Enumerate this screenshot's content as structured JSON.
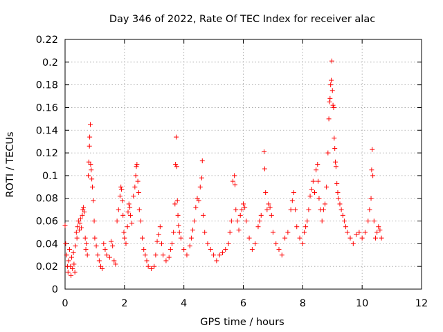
{
  "chart_data": {
    "type": "scatter",
    "title": "Day 346 of 2022, Rate Of TEC Index for receiver alac",
    "xlabel": "GPS time / hours",
    "ylabel": "ROTI / TECUs",
    "xlim": [
      0,
      12
    ],
    "ylim": [
      0,
      0.22
    ],
    "x_ticks": [
      "0",
      "2",
      "4",
      "6",
      "8",
      "10",
      "12"
    ],
    "x_tick_values": [
      0,
      2,
      4,
      6,
      8,
      10,
      12
    ],
    "y_ticks": [
      "0",
      "0.02",
      "0.04",
      "0.06",
      "0.08",
      "0.1",
      "0.12",
      "0.14",
      "0.16",
      "0.18",
      "0.2",
      "0.22"
    ],
    "y_tick_values": [
      0,
      0.02,
      0.04,
      0.06,
      0.08,
      0.1,
      0.12,
      0.14,
      0.16,
      0.18,
      0.2,
      0.22
    ],
    "grid": true,
    "marker": "+",
    "color": "#ff0000",
    "series": [
      {
        "name": "",
        "points": [
          [
            0.0,
            0.056
          ],
          [
            0.02,
            0.04
          ],
          [
            0.05,
            0.03
          ],
          [
            0.08,
            0.02
          ],
          [
            0.1,
            0.015
          ],
          [
            0.12,
            0.025
          ],
          [
            0.15,
            0.035
          ],
          [
            0.18,
            0.02
          ],
          [
            0.2,
            0.012
          ],
          [
            0.22,
            0.028
          ],
          [
            0.25,
            0.018
          ],
          [
            0.28,
            0.032
          ],
          [
            0.3,
            0.022
          ],
          [
            0.33,
            0.015
          ],
          [
            0.35,
            0.038
          ],
          [
            0.38,
            0.05
          ],
          [
            0.4,
            0.045
          ],
          [
            0.42,
            0.055
          ],
          [
            0.45,
            0.06
          ],
          [
            0.48,
            0.052
          ],
          [
            0.5,
            0.058
          ],
          [
            0.52,
            0.062
          ],
          [
            0.55,
            0.054
          ],
          [
            0.58,
            0.065
          ],
          [
            0.6,
            0.07
          ],
          [
            0.62,
            0.072
          ],
          [
            0.65,
            0.068
          ],
          [
            0.68,
            0.045
          ],
          [
            0.7,
            0.035
          ],
          [
            0.72,
            0.04
          ],
          [
            0.75,
            0.03
          ],
          [
            0.78,
            0.1
          ],
          [
            0.8,
            0.112
          ],
          [
            0.82,
            0.126
          ],
          [
            0.83,
            0.134
          ],
          [
            0.85,
            0.145
          ],
          [
            0.86,
            0.11
          ],
          [
            0.88,
            0.105
          ],
          [
            0.9,
            0.097
          ],
          [
            0.92,
            0.09
          ],
          [
            0.95,
            0.078
          ],
          [
            0.98,
            0.06
          ],
          [
            1.0,
            0.045
          ],
          [
            1.05,
            0.038
          ],
          [
            1.1,
            0.03
          ],
          [
            1.15,
            0.025
          ],
          [
            1.2,
            0.02
          ],
          [
            1.25,
            0.018
          ],
          [
            1.3,
            0.04
          ],
          [
            1.35,
            0.035
          ],
          [
            1.4,
            0.03
          ],
          [
            1.5,
            0.028
          ],
          [
            1.55,
            0.042
          ],
          [
            1.6,
            0.038
          ],
          [
            1.65,
            0.025
          ],
          [
            1.7,
            0.022
          ],
          [
            1.75,
            0.06
          ],
          [
            1.8,
            0.07
          ],
          [
            1.85,
            0.082
          ],
          [
            1.88,
            0.09
          ],
          [
            1.9,
            0.088
          ],
          [
            1.93,
            0.078
          ],
          [
            1.95,
            0.065
          ],
          [
            1.98,
            0.05
          ],
          [
            2.0,
            0.045
          ],
          [
            2.05,
            0.04
          ],
          [
            2.1,
            0.055
          ],
          [
            2.12,
            0.068
          ],
          [
            2.15,
            0.075
          ],
          [
            2.18,
            0.072
          ],
          [
            2.2,
            0.065
          ],
          [
            2.25,
            0.058
          ],
          [
            2.3,
            0.082
          ],
          [
            2.35,
            0.09
          ],
          [
            2.38,
            0.1
          ],
          [
            2.4,
            0.108
          ],
          [
            2.42,
            0.11
          ],
          [
            2.45,
            0.095
          ],
          [
            2.48,
            0.085
          ],
          [
            2.5,
            0.07
          ],
          [
            2.55,
            0.06
          ],
          [
            2.6,
            0.045
          ],
          [
            2.65,
            0.035
          ],
          [
            2.7,
            0.03
          ],
          [
            2.75,
            0.025
          ],
          [
            2.8,
            0.02
          ],
          [
            2.9,
            0.018
          ],
          [
            3.0,
            0.02
          ],
          [
            3.05,
            0.03
          ],
          [
            3.1,
            0.042
          ],
          [
            3.15,
            0.048
          ],
          [
            3.2,
            0.055
          ],
          [
            3.25,
            0.04
          ],
          [
            3.3,
            0.03
          ],
          [
            3.4,
            0.025
          ],
          [
            3.5,
            0.028
          ],
          [
            3.55,
            0.035
          ],
          [
            3.6,
            0.04
          ],
          [
            3.65,
            0.05
          ],
          [
            3.7,
            0.075
          ],
          [
            3.72,
            0.11
          ],
          [
            3.74,
            0.134
          ],
          [
            3.76,
            0.108
          ],
          [
            3.78,
            0.078
          ],
          [
            3.8,
            0.065
          ],
          [
            3.82,
            0.056
          ],
          [
            3.85,
            0.05
          ],
          [
            3.9,
            0.045
          ],
          [
            4.0,
            0.035
          ],
          [
            4.1,
            0.03
          ],
          [
            4.2,
            0.038
          ],
          [
            4.25,
            0.045
          ],
          [
            4.3,
            0.052
          ],
          [
            4.35,
            0.06
          ],
          [
            4.4,
            0.072
          ],
          [
            4.45,
            0.08
          ],
          [
            4.5,
            0.078
          ],
          [
            4.55,
            0.09
          ],
          [
            4.6,
            0.098
          ],
          [
            4.62,
            0.113
          ],
          [
            4.65,
            0.065
          ],
          [
            4.7,
            0.05
          ],
          [
            4.8,
            0.04
          ],
          [
            4.9,
            0.035
          ],
          [
            5.0,
            0.03
          ],
          [
            5.1,
            0.025
          ],
          [
            5.2,
            0.03
          ],
          [
            5.3,
            0.032
          ],
          [
            5.4,
            0.035
          ],
          [
            5.5,
            0.04
          ],
          [
            5.55,
            0.05
          ],
          [
            5.6,
            0.06
          ],
          [
            5.65,
            0.095
          ],
          [
            5.7,
            0.1
          ],
          [
            5.72,
            0.092
          ],
          [
            5.75,
            0.07
          ],
          [
            5.8,
            0.06
          ],
          [
            5.85,
            0.052
          ],
          [
            5.9,
            0.065
          ],
          [
            5.95,
            0.07
          ],
          [
            6.0,
            0.075
          ],
          [
            6.05,
            0.072
          ],
          [
            6.1,
            0.06
          ],
          [
            6.2,
            0.045
          ],
          [
            6.3,
            0.035
          ],
          [
            6.4,
            0.04
          ],
          [
            6.5,
            0.055
          ],
          [
            6.55,
            0.06
          ],
          [
            6.6,
            0.065
          ],
          [
            6.7,
            0.121
          ],
          [
            6.72,
            0.106
          ],
          [
            6.75,
            0.085
          ],
          [
            6.8,
            0.07
          ],
          [
            6.85,
            0.075
          ],
          [
            6.9,
            0.072
          ],
          [
            6.95,
            0.065
          ],
          [
            7.0,
            0.05
          ],
          [
            7.1,
            0.04
          ],
          [
            7.2,
            0.035
          ],
          [
            7.3,
            0.03
          ],
          [
            7.4,
            0.045
          ],
          [
            7.5,
            0.05
          ],
          [
            7.6,
            0.07
          ],
          [
            7.65,
            0.078
          ],
          [
            7.7,
            0.085
          ],
          [
            7.75,
            0.07
          ],
          [
            7.8,
            0.055
          ],
          [
            7.9,
            0.045
          ],
          [
            8.0,
            0.04
          ],
          [
            8.05,
            0.05
          ],
          [
            8.1,
            0.055
          ],
          [
            8.15,
            0.06
          ],
          [
            8.2,
            0.07
          ],
          [
            8.25,
            0.082
          ],
          [
            8.3,
            0.088
          ],
          [
            8.35,
            0.095
          ],
          [
            8.4,
            0.085
          ],
          [
            8.45,
            0.105
          ],
          [
            8.5,
            0.11
          ],
          [
            8.52,
            0.095
          ],
          [
            8.55,
            0.08
          ],
          [
            8.6,
            0.07
          ],
          [
            8.65,
            0.06
          ],
          [
            8.7,
            0.07
          ],
          [
            8.75,
            0.075
          ],
          [
            8.8,
            0.09
          ],
          [
            8.85,
            0.12
          ],
          [
            8.88,
            0.15
          ],
          [
            8.9,
            0.165
          ],
          [
            8.92,
            0.168
          ],
          [
            8.94,
            0.18
          ],
          [
            8.96,
            0.184
          ],
          [
            8.98,
            0.201
          ],
          [
            9.0,
            0.175
          ],
          [
            9.02,
            0.162
          ],
          [
            9.04,
            0.16
          ],
          [
            9.06,
            0.133
          ],
          [
            9.08,
            0.124
          ],
          [
            9.1,
            0.112
          ],
          [
            9.12,
            0.108
          ],
          [
            9.15,
            0.093
          ],
          [
            9.18,
            0.085
          ],
          [
            9.2,
            0.08
          ],
          [
            9.25,
            0.075
          ],
          [
            9.3,
            0.07
          ],
          [
            9.35,
            0.065
          ],
          [
            9.4,
            0.06
          ],
          [
            9.45,
            0.055
          ],
          [
            9.5,
            0.05
          ],
          [
            9.6,
            0.045
          ],
          [
            9.7,
            0.04
          ],
          [
            9.8,
            0.048
          ],
          [
            9.9,
            0.05
          ],
          [
            10.0,
            0.045
          ],
          [
            10.1,
            0.05
          ],
          [
            10.2,
            0.06
          ],
          [
            10.25,
            0.07
          ],
          [
            10.3,
            0.08
          ],
          [
            10.32,
            0.105
          ],
          [
            10.34,
            0.123
          ],
          [
            10.36,
            0.1
          ],
          [
            10.4,
            0.06
          ],
          [
            10.45,
            0.045
          ],
          [
            10.5,
            0.05
          ],
          [
            10.55,
            0.055
          ],
          [
            10.6,
            0.052
          ],
          [
            10.65,
            0.045
          ]
        ]
      }
    ]
  }
}
